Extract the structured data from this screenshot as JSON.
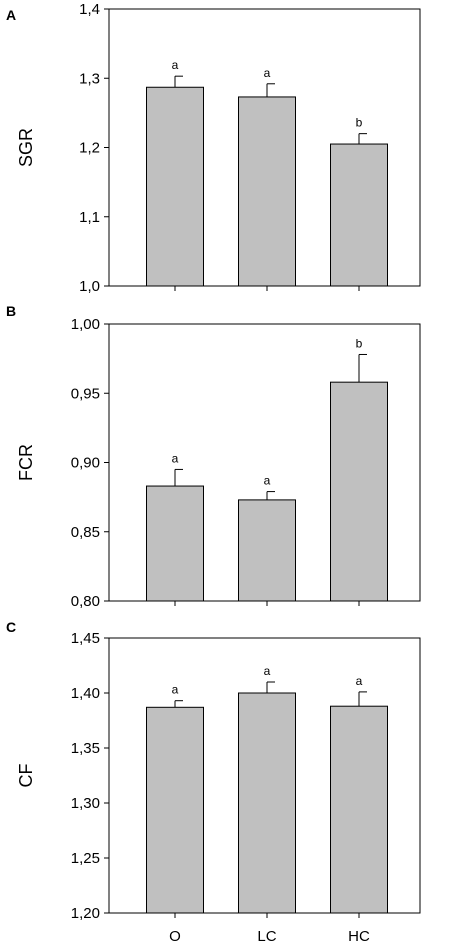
{
  "chart_data": [
    {
      "type": "bar",
      "panel": "A",
      "categories": [
        "O",
        "LC",
        "HC"
      ],
      "values": [
        1.287,
        1.273,
        1.205
      ],
      "errors": [
        0.016,
        0.019,
        0.015
      ],
      "significance": [
        "a",
        "a",
        "b"
      ],
      "ylabel": "SGR",
      "ylim": [
        1.0,
        1.4
      ],
      "yticks": [
        1.0,
        1.1,
        1.2,
        1.3,
        1.4
      ],
      "ytick_labels": [
        "1,0",
        "1,1",
        "1,2",
        "1,3",
        "1,4"
      ],
      "bar_color": "#c0c0c0"
    },
    {
      "type": "bar",
      "panel": "B",
      "categories": [
        "O",
        "LC",
        "HC"
      ],
      "values": [
        0.883,
        0.873,
        0.958
      ],
      "errors": [
        0.012,
        0.006,
        0.02
      ],
      "significance": [
        "a",
        "a",
        "b"
      ],
      "ylabel": "FCR",
      "ylim": [
        0.8,
        1.0
      ],
      "yticks": [
        0.8,
        0.85,
        0.9,
        0.95,
        1.0
      ],
      "ytick_labels": [
        "0,80",
        "0,85",
        "0,90",
        "0,95",
        "1,00"
      ],
      "bar_color": "#c0c0c0"
    },
    {
      "type": "bar",
      "panel": "C",
      "categories": [
        "O",
        "LC",
        "HC"
      ],
      "values": [
        1.387,
        1.4,
        1.388
      ],
      "errors": [
        0.006,
        0.01,
        0.013
      ],
      "significance": [
        "a",
        "a",
        "a"
      ],
      "ylabel": "CF",
      "ylim": [
        1.2,
        1.45
      ],
      "yticks": [
        1.2,
        1.25,
        1.3,
        1.35,
        1.4,
        1.45
      ],
      "ytick_labels": [
        "1,20",
        "1,25",
        "1,30",
        "1,35",
        "1,40",
        "1,45"
      ],
      "xtick_labels": [
        "O",
        "LC",
        "HC"
      ],
      "bar_color": "#c0c0c0"
    }
  ]
}
